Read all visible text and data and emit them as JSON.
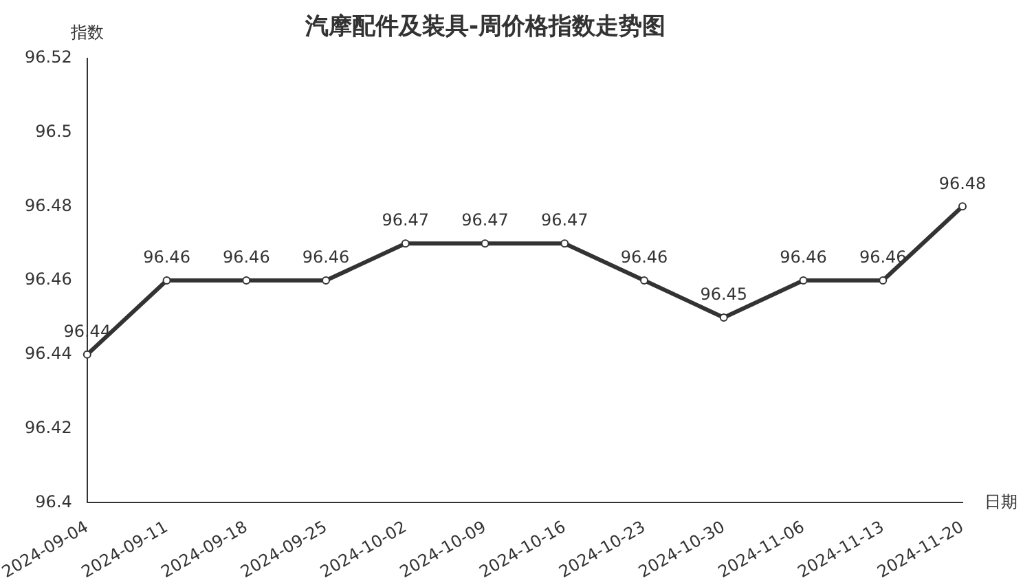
{
  "chart_data": {
    "type": "line",
    "title": "汽摩配件及装具-周价格指数走势图",
    "xlabel": "日期",
    "ylabel": "指数",
    "categories": [
      "2024-09-04",
      "2024-09-11",
      "2024-09-18",
      "2024-09-25",
      "2024-10-02",
      "2024-10-09",
      "2024-10-16",
      "2024-10-23",
      "2024-10-30",
      "2024-11-06",
      "2024-11-13",
      "2024-11-20"
    ],
    "series": [
      {
        "color": "#333333",
        "values": [
          96.44,
          96.46,
          96.46,
          96.46,
          96.47,
          96.47,
          96.47,
          96.46,
          96.45,
          96.46,
          96.46,
          96.48
        ]
      }
    ],
    "ylim": [
      96.4,
      96.52
    ],
    "yticks": [
      96.4,
      96.42,
      96.44,
      96.46,
      96.48,
      96.5,
      96.52
    ],
    "grid": false,
    "legend": false,
    "marker": "circle",
    "line_style": "solid",
    "data_labels": true
  }
}
